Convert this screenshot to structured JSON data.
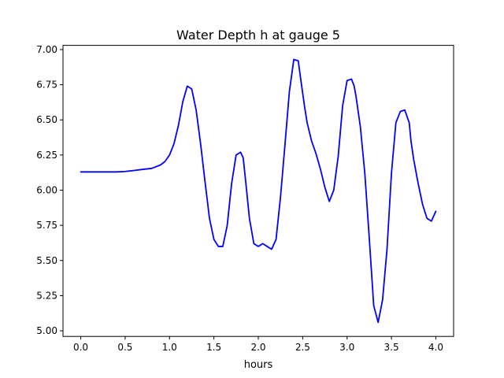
{
  "chart_data": {
    "type": "line",
    "title": "Water Depth h at gauge 5",
    "xlabel": "hours",
    "ylabel": "",
    "xlim": [
      -0.2,
      4.2
    ],
    "ylim": [
      4.96,
      7.03
    ],
    "xticks": [
      0.0,
      0.5,
      1.0,
      1.5,
      2.0,
      2.5,
      3.0,
      3.5,
      4.0
    ],
    "xtick_labels": [
      "0.0",
      "0.5",
      "1.0",
      "1.5",
      "2.0",
      "2.5",
      "3.0",
      "3.5",
      "4.0"
    ],
    "yticks": [
      5.0,
      5.25,
      5.5,
      5.75,
      6.0,
      6.25,
      6.5,
      6.75,
      7.0
    ],
    "ytick_labels": [
      "5.00",
      "5.25",
      "5.50",
      "5.75",
      "6.00",
      "6.25",
      "6.50",
      "6.75",
      "7.00"
    ],
    "grid": false,
    "legend": "none",
    "series": [
      {
        "color": "#0000ff",
        "x": [
          0.0,
          0.2,
          0.4,
          0.5,
          0.6,
          0.7,
          0.8,
          0.9,
          0.95,
          1.0,
          1.05,
          1.1,
          1.15,
          1.2,
          1.25,
          1.3,
          1.35,
          1.4,
          1.45,
          1.5,
          1.55,
          1.6,
          1.65,
          1.7,
          1.75,
          1.8,
          1.83,
          1.86,
          1.9,
          1.95,
          2.0,
          2.05,
          2.1,
          2.15,
          2.2,
          2.25,
          2.3,
          2.35,
          2.4,
          2.45,
          2.48,
          2.52,
          2.55,
          2.6,
          2.65,
          2.7,
          2.75,
          2.8,
          2.85,
          2.9,
          2.95,
          3.0,
          3.05,
          3.08,
          3.1,
          3.15,
          3.2,
          3.25,
          3.3,
          3.35,
          3.4,
          3.45,
          3.5,
          3.55,
          3.6,
          3.65,
          3.7,
          3.72,
          3.75,
          3.8,
          3.85,
          3.9,
          3.95,
          4.0
        ],
        "y": [
          6.13,
          6.13,
          6.13,
          6.133,
          6.14,
          6.148,
          6.155,
          6.18,
          6.205,
          6.25,
          6.33,
          6.46,
          6.63,
          6.74,
          6.72,
          6.57,
          6.33,
          6.06,
          5.8,
          5.65,
          5.6,
          5.6,
          5.75,
          6.05,
          6.25,
          6.27,
          6.23,
          6.05,
          5.8,
          5.62,
          5.6,
          5.62,
          5.6,
          5.58,
          5.65,
          5.95,
          6.32,
          6.7,
          6.93,
          6.92,
          6.78,
          6.6,
          6.48,
          6.35,
          6.26,
          6.15,
          6.02,
          5.92,
          6.0,
          6.24,
          6.6,
          6.78,
          6.79,
          6.74,
          6.67,
          6.45,
          6.12,
          5.66,
          5.18,
          5.06,
          5.22,
          5.58,
          6.12,
          6.48,
          6.56,
          6.57,
          6.48,
          6.35,
          6.22,
          6.05,
          5.9,
          5.8,
          5.78,
          5.85
        ]
      }
    ]
  }
}
